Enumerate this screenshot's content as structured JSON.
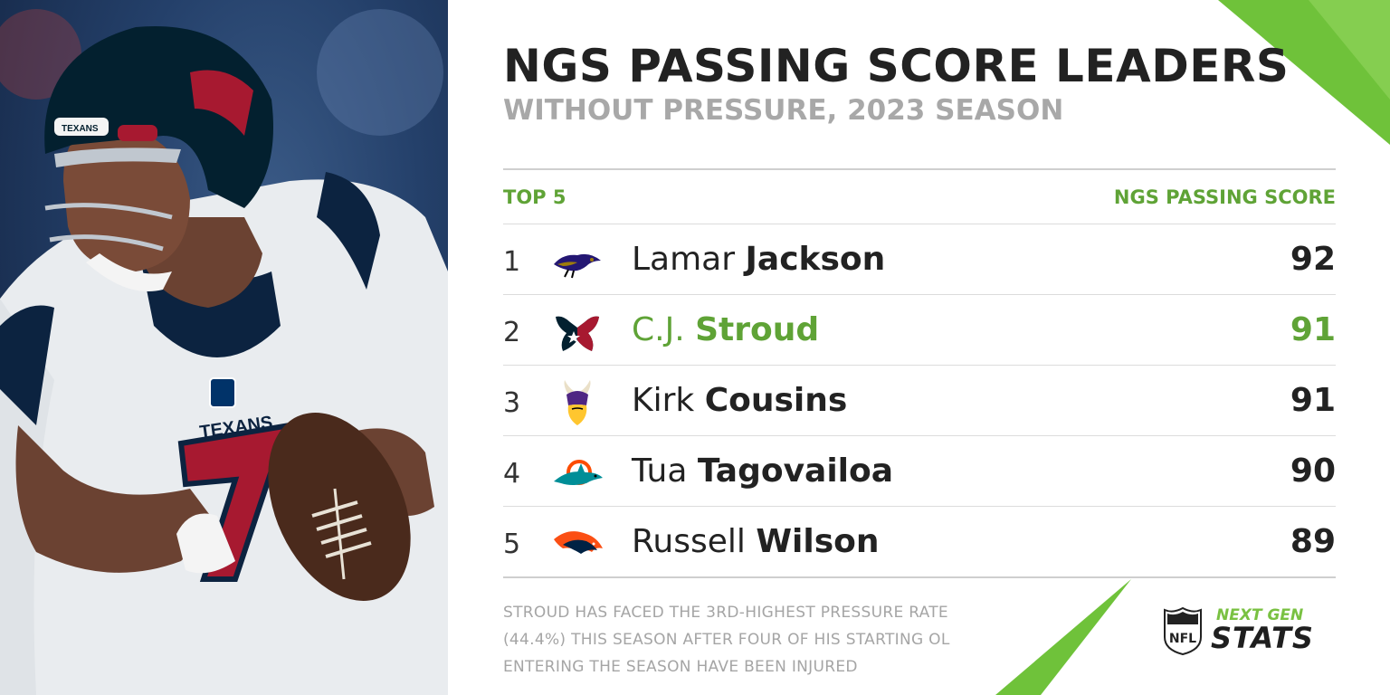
{
  "header": {
    "title": "NGS PASSING SCORE LEADERS",
    "subtitle": "WITHOUT PRESSURE, 2023 SEASON"
  },
  "table": {
    "left_header": "TOP 5",
    "right_header": "NGS PASSING SCORE",
    "rows": [
      {
        "rank": "1",
        "first": "Lamar",
        "last": "Jackson",
        "score": "92",
        "team_icon": "ravens-logo-icon"
      },
      {
        "rank": "2",
        "first": "C.J.",
        "last": "Stroud",
        "score": "91",
        "team_icon": "texans-logo-icon",
        "highlight": true
      },
      {
        "rank": "3",
        "first": "Kirk",
        "last": "Cousins",
        "score": "91",
        "team_icon": "vikings-logo-icon"
      },
      {
        "rank": "4",
        "first": "Tua",
        "last": "Tagovailoa",
        "score": "90",
        "team_icon": "dolphins-logo-icon"
      },
      {
        "rank": "5",
        "first": "Russell",
        "last": "Wilson",
        "score": "89",
        "team_icon": "broncos-logo-icon"
      }
    ]
  },
  "footnote": {
    "line1": "STROUD HAS FACED THE 3RD-HIGHEST PRESSURE RATE",
    "line2": "(44.4%) THIS SEASON AFTER FOUR OF HIS STARTING OL",
    "line3": "ENTERING THE SEASON HAVE BEEN INJURED"
  },
  "brand": {
    "line1": "NEXT GEN",
    "line2": "STATS",
    "shield_text": "NFL"
  },
  "photo": {
    "jersey_text": "TEXANS",
    "helmet_text": "TEXANS",
    "jersey_number": "7"
  },
  "colors": {
    "accent_green": "#5fa336",
    "texans_navy": "#03202f",
    "texans_red": "#a71930"
  }
}
